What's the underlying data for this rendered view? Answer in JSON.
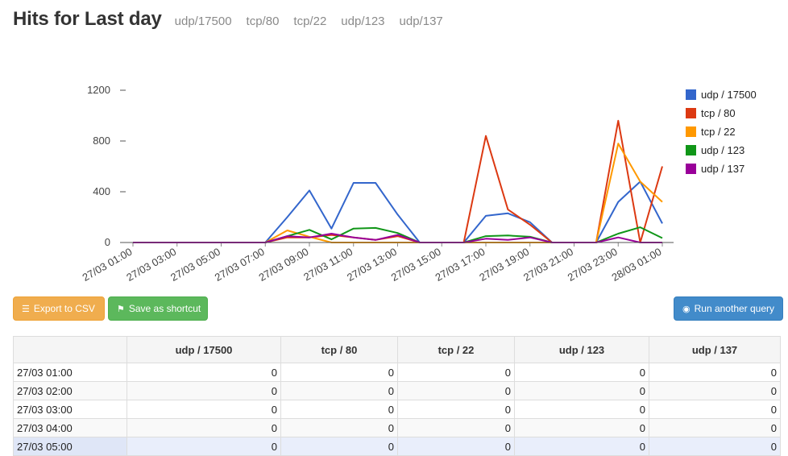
{
  "header": {
    "title": "Hits for Last day",
    "ports": [
      "udp/17500",
      "tcp/80",
      "tcp/22",
      "udp/123",
      "udp/137"
    ]
  },
  "buttons": {
    "export": "Export to CSV",
    "save": "Save as shortcut",
    "query": "Run another query"
  },
  "colors": {
    "udp17500": "#3366cc",
    "tcp80": "#dc3912",
    "tcp22": "#ff9900",
    "udp123": "#109618",
    "udp137": "#990099"
  },
  "chart_data": {
    "type": "line",
    "ylim": [
      0,
      1200
    ],
    "yticks": [
      0,
      400,
      800,
      1200
    ],
    "xtick_labels": [
      "27/03 01:00",
      "27/03 03:00",
      "27/03 05:00",
      "27/03 07:00",
      "27/03 09:00",
      "27/03 11:00",
      "27/03 13:00",
      "27/03 15:00",
      "27/03 17:00",
      "27/03 19:00",
      "27/03 21:00",
      "27/03 23:00",
      "28/03 01:00"
    ],
    "x": [
      "01:00",
      "02:00",
      "03:00",
      "04:00",
      "05:00",
      "06:00",
      "07:00",
      "08:00",
      "09:00",
      "10:00",
      "11:00",
      "12:00",
      "13:00",
      "14:00",
      "15:00",
      "16:00",
      "17:00",
      "18:00",
      "19:00",
      "20:00",
      "21:00",
      "22:00",
      "23:00",
      "00:00",
      "01:00"
    ],
    "legend_position": "right",
    "series": [
      {
        "name": "udp / 17500",
        "color": "#3366cc",
        "values": [
          0,
          0,
          0,
          0,
          0,
          0,
          0,
          200,
          410,
          110,
          470,
          470,
          220,
          0,
          0,
          0,
          210,
          230,
          160,
          0,
          0,
          0,
          320,
          480,
          150
        ]
      },
      {
        "name": "tcp / 80",
        "color": "#dc3912",
        "values": [
          0,
          0,
          0,
          0,
          0,
          0,
          0,
          40,
          40,
          60,
          40,
          20,
          50,
          0,
          0,
          0,
          840,
          260,
          140,
          0,
          0,
          0,
          960,
          0,
          600
        ]
      },
      {
        "name": "tcp / 22",
        "color": "#ff9900",
        "values": [
          0,
          0,
          0,
          0,
          0,
          0,
          0,
          95,
          45,
          0,
          0,
          0,
          0,
          0,
          0,
          0,
          0,
          0,
          0,
          0,
          0,
          0,
          780,
          480,
          320
        ]
      },
      {
        "name": "udp / 123",
        "color": "#109618",
        "values": [
          0,
          0,
          0,
          0,
          0,
          0,
          0,
          50,
          100,
          25,
          110,
          115,
          75,
          0,
          0,
          0,
          50,
          55,
          45,
          0,
          0,
          0,
          70,
          120,
          35
        ]
      },
      {
        "name": "udp / 137",
        "color": "#990099",
        "values": [
          0,
          0,
          0,
          0,
          0,
          0,
          0,
          50,
          40,
          70,
          40,
          20,
          60,
          0,
          0,
          0,
          30,
          20,
          40,
          0,
          0,
          0,
          40,
          0,
          0
        ]
      }
    ]
  },
  "table": {
    "columns": [
      "",
      "udp / 17500",
      "tcp / 80",
      "tcp / 22",
      "udp / 123",
      "udp / 137"
    ],
    "rows": [
      [
        "27/03 01:00",
        "0",
        "0",
        "0",
        "0",
        "0"
      ],
      [
        "27/03 02:00",
        "0",
        "0",
        "0",
        "0",
        "0"
      ],
      [
        "27/03 03:00",
        "0",
        "0",
        "0",
        "0",
        "0"
      ],
      [
        "27/03 04:00",
        "0",
        "0",
        "0",
        "0",
        "0"
      ],
      [
        "27/03 05:00",
        "0",
        "0",
        "0",
        "0",
        "0"
      ]
    ]
  }
}
